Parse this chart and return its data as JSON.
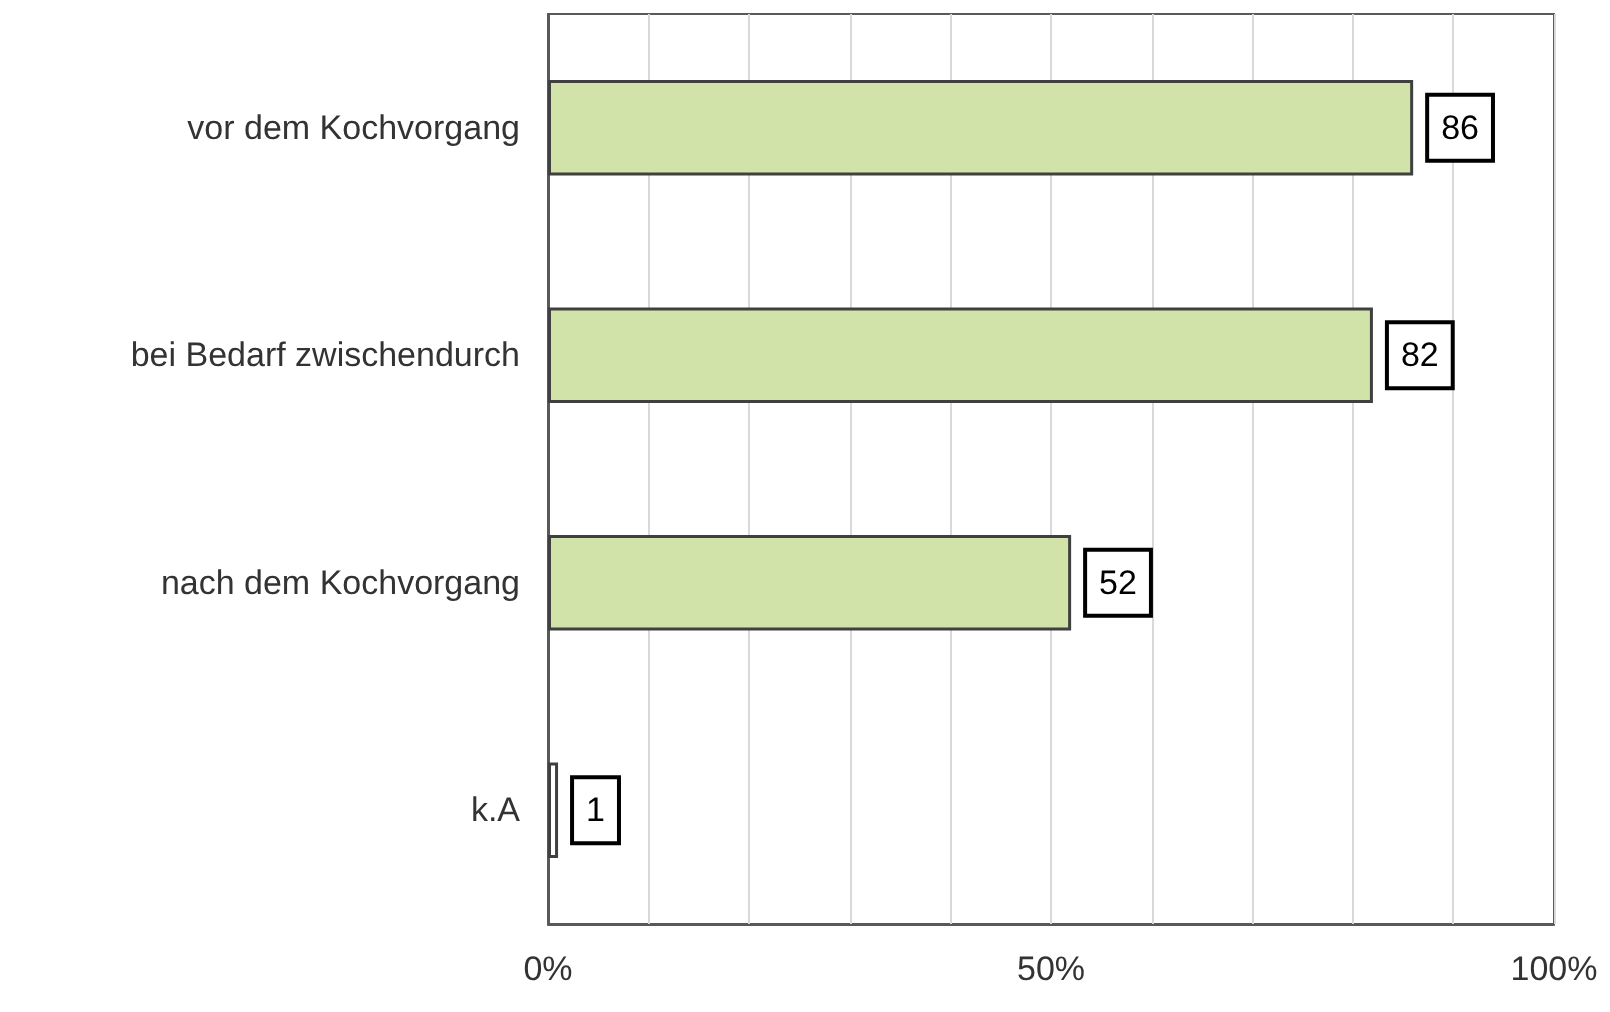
{
  "chart_data": {
    "type": "bar",
    "orientation": "horizontal",
    "categories": [
      "vor dem Kochvorgang",
      "bei Bedarf zwischendurch",
      "nach dem Kochvorgang",
      "k.A"
    ],
    "values": [
      86,
      82,
      52,
      1
    ],
    "colors": [
      "#d1e3a8",
      "#d1e3a8",
      "#d1e3a8",
      "#ffffff"
    ],
    "xlim": [
      0,
      100
    ],
    "xticks": [
      {
        "value": 0,
        "label": "0%"
      },
      {
        "value": 10,
        "label": null
      },
      {
        "value": 20,
        "label": null
      },
      {
        "value": 30,
        "label": null
      },
      {
        "value": 40,
        "label": null
      },
      {
        "value": 50,
        "label": "50%"
      },
      {
        "value": 60,
        "label": null
      },
      {
        "value": 70,
        "label": null
      },
      {
        "value": 80,
        "label": null
      },
      {
        "value": 90,
        "label": null
      },
      {
        "value": 100,
        "label": "100%"
      }
    ],
    "grid": "x",
    "data_labels": true
  }
}
